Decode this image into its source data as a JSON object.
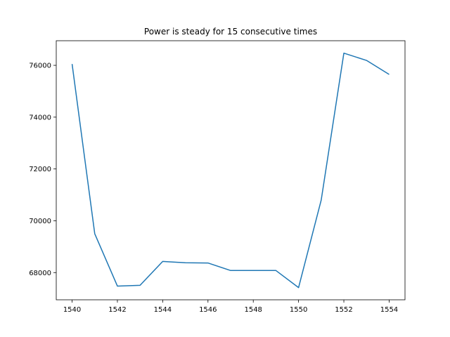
{
  "chart_data": {
    "type": "line",
    "title": "Power is steady for 15 consecutive times",
    "xlabel": "",
    "ylabel": "",
    "xlim": [
      1539.3,
      1554.7
    ],
    "ylim": [
      66950,
      76950
    ],
    "xticks": [
      1540,
      1542,
      1544,
      1546,
      1548,
      1550,
      1552,
      1554
    ],
    "yticks": [
      68000,
      70000,
      72000,
      74000,
      76000
    ],
    "grid": false,
    "legend": "none",
    "series": [
      {
        "color": "#1f77b4",
        "x": [
          1540,
          1541,
          1542,
          1543,
          1544,
          1545,
          1546,
          1547,
          1548,
          1549,
          1550,
          1551,
          1552,
          1553,
          1554
        ],
        "y": [
          76050,
          69500,
          67480,
          67510,
          68430,
          68380,
          68370,
          68080,
          68080,
          68080,
          67420,
          70800,
          76470,
          76190,
          75650
        ]
      }
    ]
  }
}
